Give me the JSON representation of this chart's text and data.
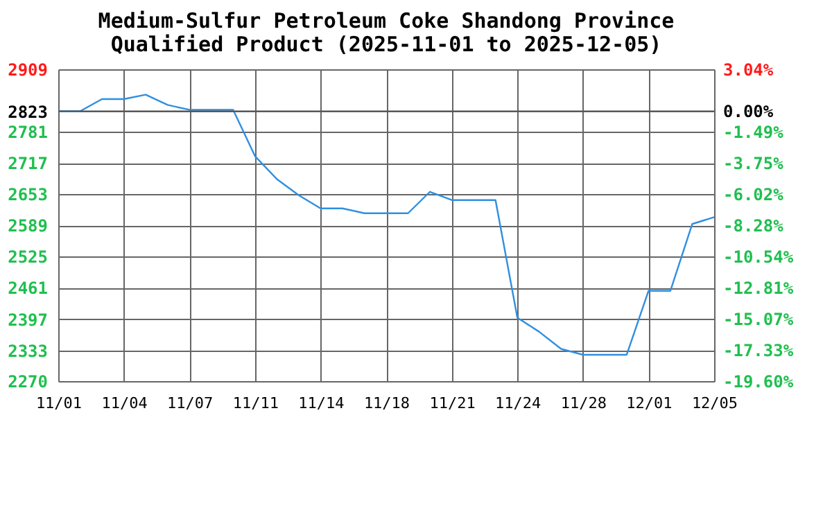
{
  "chart_data": {
    "type": "line",
    "title": [
      "Medium-Sulfur Petroleum Coke Shandong Province",
      "Qualified Product (2025-11-01 to 2025-12-05)"
    ],
    "categories": [
      "11/01",
      null,
      null,
      "11/04",
      null,
      null,
      "11/07",
      null,
      null,
      "11/11",
      null,
      null,
      "11/14",
      null,
      null,
      "11/18",
      null,
      null,
      "11/21",
      null,
      null,
      "11/24",
      null,
      null,
      "11/28",
      null,
      null,
      "12/01",
      null,
      null,
      "12/05"
    ],
    "series": [
      {
        "color": "#2f8fe0",
        "values": [
          2823,
          2823,
          2848,
          2848,
          2857,
          2836,
          2826,
          2826,
          2826,
          2731,
          2684,
          2651,
          2624,
          2624,
          2614,
          2614,
          2614,
          2658,
          2641,
          2641,
          2641,
          2400,
          2371,
          2336,
          2324,
          2324,
          2324,
          2455,
          2455,
          2592,
          2606
        ]
      }
    ],
    "ylim": [
      2270,
      2909
    ],
    "yticks": [
      2270,
      2333,
      2397,
      2461,
      2525,
      2589,
      2653,
      2717,
      2781,
      2823,
      2909
    ],
    "y2lim": [
      -19.6,
      3.04
    ],
    "y2ticks": [
      {
        "value": -19.6,
        "label": "-19.60%"
      },
      {
        "value": -17.33,
        "label": "-17.33%"
      },
      {
        "value": -15.07,
        "label": "-15.07%"
      },
      {
        "value": -12.81,
        "label": "-12.81%"
      },
      {
        "value": -10.54,
        "label": "-10.54%"
      },
      {
        "value": -8.28,
        "label": "-8.28%"
      },
      {
        "value": -6.02,
        "label": "-6.02%"
      },
      {
        "value": -3.75,
        "label": "-3.75%"
      },
      {
        "value": -1.49,
        "label": "-1.49%"
      },
      {
        "value": 0,
        "label": "0.00%"
      },
      {
        "value": 3.04,
        "label": "3.04%"
      }
    ],
    "ref_lines": [
      {
        "axis": "y2",
        "value": 0,
        "color": "#555555"
      }
    ],
    "grid": true,
    "marker": "none",
    "line_style": "solid"
  }
}
